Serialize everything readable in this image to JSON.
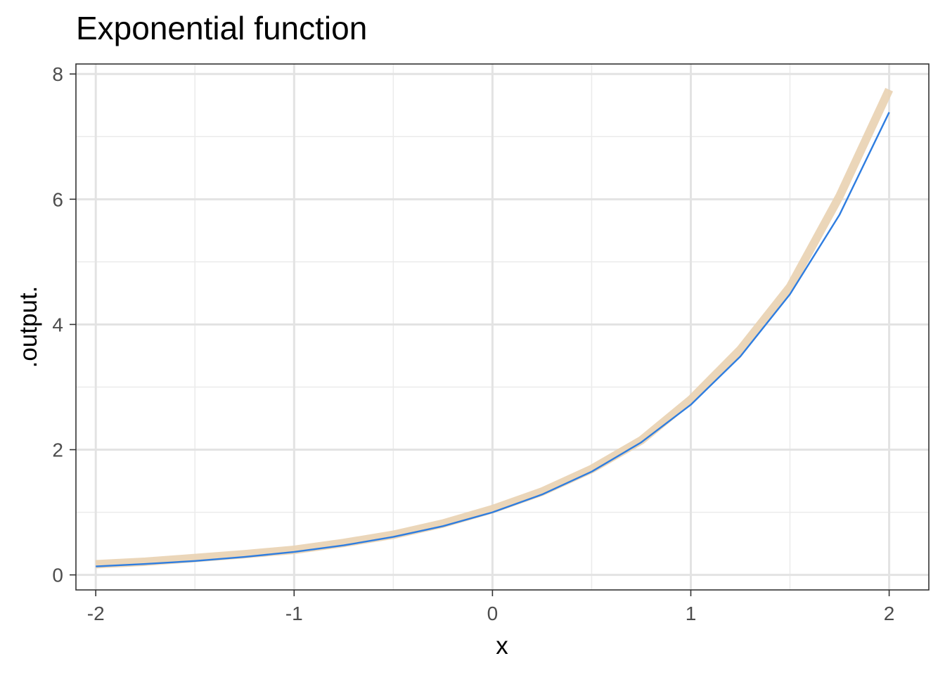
{
  "chart_data": {
    "type": "line",
    "title": "Exponential function",
    "xlabel": "x",
    "ylabel": ".output.",
    "xlim": [
      -2.1,
      2.2
    ],
    "ylim": [
      -0.24,
      8.16
    ],
    "x_ticks": [
      -2,
      -1,
      0,
      1,
      2
    ],
    "x_tick_labels": [
      "-2",
      "-1",
      "0",
      "1",
      "2"
    ],
    "y_ticks": [
      0,
      2,
      4,
      6,
      8
    ],
    "y_tick_labels": [
      "0",
      "2",
      "4",
      "6",
      "8"
    ],
    "x_minor": [
      -1.5,
      -0.5,
      0.5,
      1.5
    ],
    "y_minor": [
      1,
      3,
      5,
      7
    ],
    "grid": true,
    "legend": "none",
    "x": [
      -2.0,
      -1.75,
      -1.5,
      -1.25,
      -1.0,
      -0.75,
      -0.5,
      -0.25,
      0.0,
      0.25,
      0.5,
      0.75,
      1.0,
      1.25,
      1.5,
      1.75,
      2.0
    ],
    "series": [
      {
        "color": "#e9d1b1",
        "style": "thick",
        "values": [
          0.17,
          0.21,
          0.27,
          0.33,
          0.4,
          0.51,
          0.64,
          0.82,
          1.05,
          1.33,
          1.69,
          2.15,
          2.8,
          3.6,
          4.6,
          6.05,
          7.75
        ]
      },
      {
        "color": "#2e7de0",
        "style": "thin",
        "values": [
          0.135,
          0.174,
          0.223,
          0.287,
          0.368,
          0.472,
          0.607,
          0.779,
          1.0,
          1.284,
          1.649,
          2.117,
          2.718,
          3.49,
          4.482,
          5.755,
          7.389
        ]
      }
    ]
  }
}
